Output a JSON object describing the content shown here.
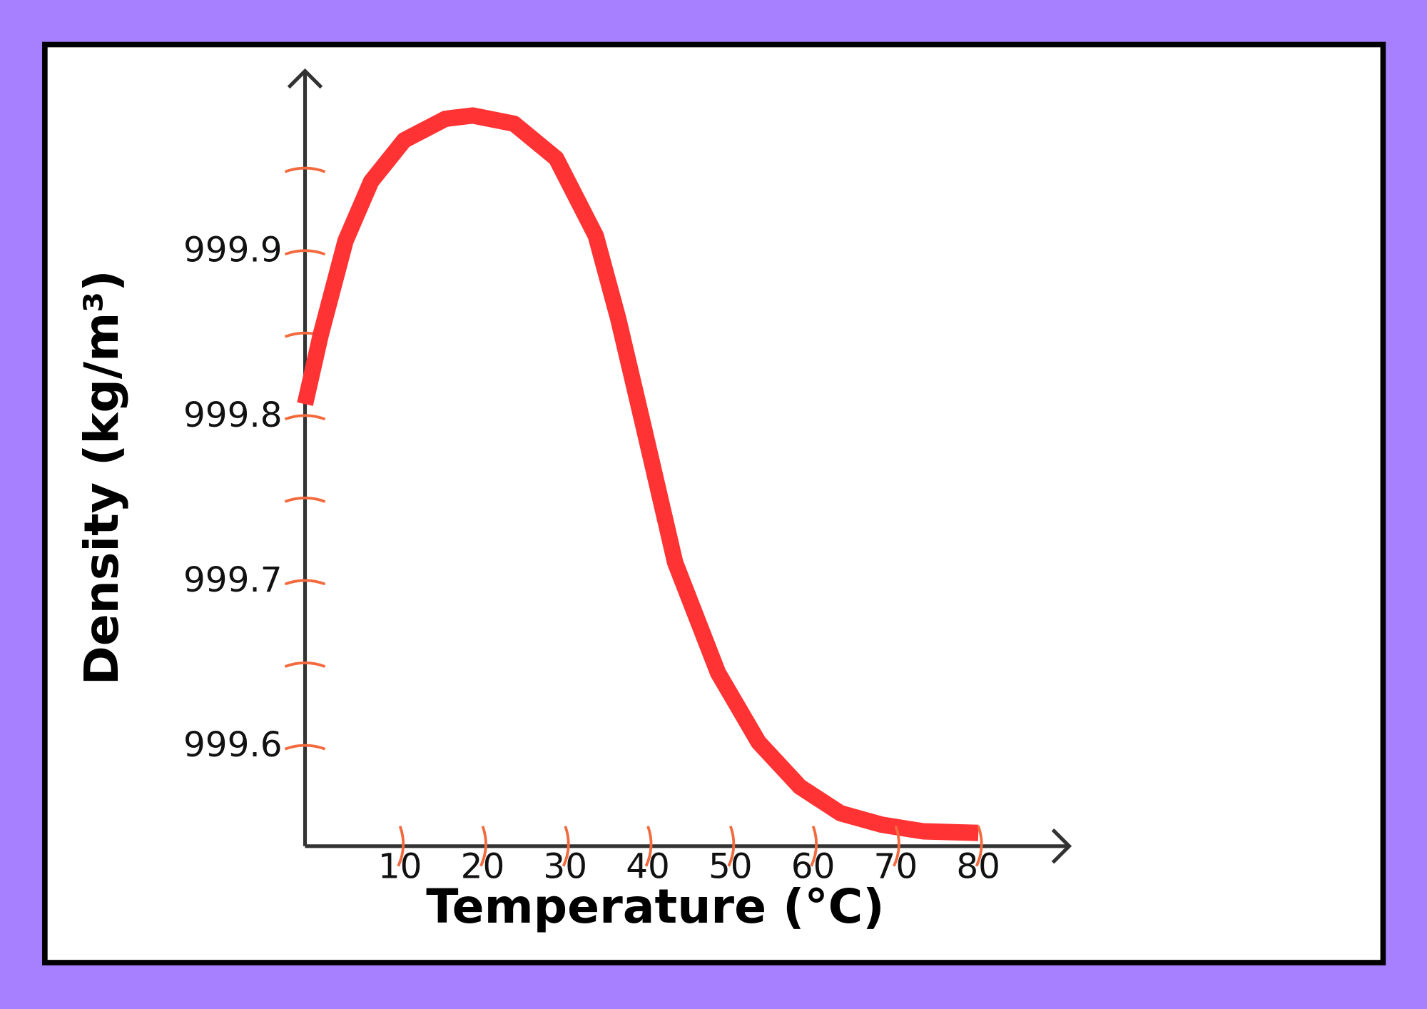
{
  "chart_data": {
    "type": "line",
    "x_label": "Temperature (°C)",
    "y_label": "Density (kg/m³)",
    "series": [
      {
        "name": "Density",
        "color": "#ff3333",
        "x": [
          -1.5,
          0.4,
          3.4,
          6.5,
          10.5,
          15.5,
          18.8,
          23.8,
          28.9,
          33.7,
          36.4,
          39.5,
          43.3,
          48.5,
          53.4,
          58.4,
          63.3,
          68.3,
          73.3,
          80
        ],
        "values": [
          999.808,
          999.85,
          999.907,
          999.943,
          999.968,
          999.981,
          999.983,
          999.978,
          999.957,
          999.91,
          999.86,
          999.794,
          999.712,
          999.645,
          999.603,
          999.576,
          999.56,
          999.553,
          999.549,
          999.548
        ]
      }
    ],
    "xlim": [
      -1.5,
      91
    ],
    "ylim": [
      999.54,
      1000.01
    ],
    "xticks": [
      10,
      20,
      30,
      40,
      50,
      60,
      70,
      80
    ],
    "yticks": [
      999.6,
      999.7,
      999.8,
      999.9
    ],
    "minor_yticks": [
      999.65,
      999.75,
      999.85,
      999.95
    ],
    "tick_color": "#f26a3d",
    "axis_color": "#333333"
  }
}
